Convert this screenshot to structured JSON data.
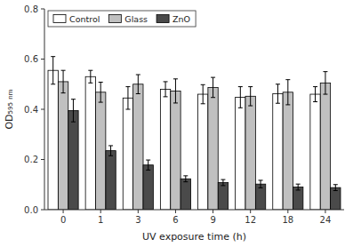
{
  "chart_data": {
    "type": "bar",
    "xlabel": "UV exposure time  (h)",
    "ylabel": "OD₅₉₅ ₙₘ",
    "categories": [
      "0",
      "1",
      "3",
      "6",
      "9",
      "12",
      "18",
      "24"
    ],
    "series": [
      {
        "name": "Control",
        "color": "#FFFFFF",
        "values": [
          0.555,
          0.53,
          0.445,
          0.48,
          0.46,
          0.448,
          0.462,
          0.46
        ],
        "errors": [
          0.055,
          0.025,
          0.045,
          0.03,
          0.038,
          0.042,
          0.038,
          0.03
        ]
      },
      {
        "name": "Glass",
        "color": "#C0C0C0",
        "values": [
          0.51,
          0.468,
          0.5,
          0.473,
          0.487,
          0.452,
          0.468,
          0.505
        ],
        "errors": [
          0.045,
          0.04,
          0.038,
          0.048,
          0.04,
          0.038,
          0.05,
          0.045
        ]
      },
      {
        "name": "ZnO",
        "color": "#4A4A4A",
        "values": [
          0.395,
          0.235,
          0.178,
          0.123,
          0.108,
          0.102,
          0.09,
          0.088
        ],
        "errors": [
          0.045,
          0.02,
          0.02,
          0.012,
          0.012,
          0.015,
          0.012,
          0.012
        ]
      }
    ],
    "ylim": [
      0.0,
      0.8
    ],
    "yticks": [
      {
        "value": 0.0,
        "label": "0.0"
      },
      0.2,
      0.4,
      0.6,
      0.8
    ],
    "legend": "upper left",
    "grid": false
  }
}
